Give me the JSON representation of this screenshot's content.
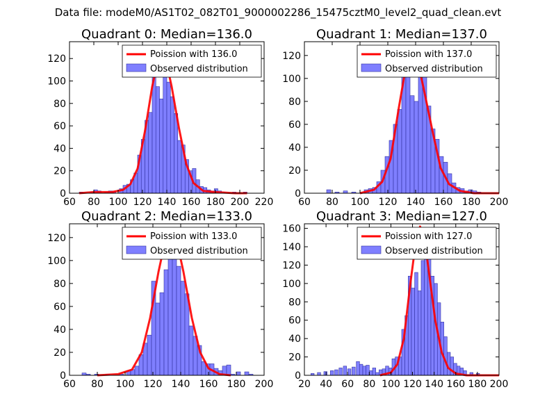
{
  "figure": {
    "suptitle": "Data file: modeM0/AS1T02_082T01_9000002286_15475cztM0_level2_quad_clean.evt"
  },
  "colors": {
    "hist_fill": "#7f7fff",
    "hist_edge": "#3030a0",
    "poisson_line": "#ff0000",
    "axes": "#000000"
  },
  "chart_data": [
    {
      "type": "bar",
      "title": "Quadrant 0: Median=136.0",
      "median": 136.0,
      "xlim": [
        60,
        220
      ],
      "ylim": [
        0,
        135
      ],
      "xticks": [
        60,
        80,
        100,
        120,
        140,
        160,
        180,
        200,
        220
      ],
      "yticks": [
        0,
        20,
        40,
        60,
        80,
        100,
        120
      ],
      "bin_width": 3,
      "legend": {
        "position": "upper-right",
        "entries": [
          "Poission with 136.0",
          "Observed distribution"
        ]
      },
      "hist": [
        [
          68,
          1
        ],
        [
          77,
          1
        ],
        [
          80,
          3
        ],
        [
          83,
          2
        ],
        [
          89,
          1
        ],
        [
          92,
          2
        ],
        [
          95,
          2
        ],
        [
          101,
          4
        ],
        [
          104,
          7
        ],
        [
          107,
          8
        ],
        [
          110,
          12
        ],
        [
          113,
          18
        ],
        [
          116,
          34
        ],
        [
          119,
          48
        ],
        [
          122,
          65
        ],
        [
          125,
          72
        ],
        [
          128,
          110
        ],
        [
          131,
          95
        ],
        [
          134,
          84
        ],
        [
          137,
          110
        ],
        [
          140,
          99
        ],
        [
          143,
          86
        ],
        [
          146,
          71
        ],
        [
          149,
          47
        ],
        [
          152,
          43
        ],
        [
          155,
          30
        ],
        [
          158,
          20
        ],
        [
          161,
          22
        ],
        [
          164,
          12
        ],
        [
          167,
          6
        ],
        [
          170,
          5
        ],
        [
          173,
          3
        ],
        [
          176,
          2
        ],
        [
          179,
          4
        ],
        [
          182,
          2
        ],
        [
          185,
          1
        ],
        [
          194,
          1
        ],
        [
          203,
          1
        ]
      ],
      "poisson": [
        [
          68,
          0
        ],
        [
          80,
          1
        ],
        [
          95,
          1
        ],
        [
          104,
          3
        ],
        [
          110,
          8
        ],
        [
          116,
          22
        ],
        [
          122,
          55
        ],
        [
          128,
          95
        ],
        [
          132,
          115
        ],
        [
          136,
          124
        ],
        [
          140,
          115
        ],
        [
          144,
          95
        ],
        [
          150,
          58
        ],
        [
          156,
          26
        ],
        [
          162,
          9
        ],
        [
          170,
          2
        ],
        [
          180,
          1
        ],
        [
          196,
          0
        ],
        [
          206,
          0
        ]
      ]
    },
    {
      "type": "bar",
      "title": "Quadrant 1: Median=137.0",
      "median": 137.0,
      "xlim": [
        60,
        200
      ],
      "ylim": [
        0,
        132
      ],
      "xticks": [
        60,
        80,
        100,
        120,
        140,
        160,
        180,
        200
      ],
      "yticks": [
        0,
        20,
        40,
        60,
        80,
        100,
        120
      ],
      "bin_width": 3,
      "legend": {
        "position": "upper-right",
        "entries": [
          "Poission with 137.0",
          "Observed distribution"
        ]
      },
      "hist": [
        [
          76,
          3
        ],
        [
          82,
          1
        ],
        [
          88,
          2
        ],
        [
          94,
          1
        ],
        [
          103,
          3
        ],
        [
          106,
          4
        ],
        [
          109,
          5
        ],
        [
          112,
          10
        ],
        [
          115,
          20
        ],
        [
          118,
          32
        ],
        [
          121,
          46
        ],
        [
          124,
          60
        ],
        [
          127,
          73
        ],
        [
          130,
          105
        ],
        [
          133,
          123
        ],
        [
          136,
          85
        ],
        [
          139,
          80
        ],
        [
          142,
          118
        ],
        [
          145,
          105
        ],
        [
          148,
          76
        ],
        [
          151,
          56
        ],
        [
          154,
          47
        ],
        [
          157,
          32
        ],
        [
          160,
          27
        ],
        [
          163,
          17
        ],
        [
          166,
          9
        ],
        [
          169,
          5
        ],
        [
          172,
          4
        ],
        [
          175,
          2
        ],
        [
          178,
          3
        ],
        [
          181,
          2
        ],
        [
          184,
          1
        ]
      ],
      "poisson": [
        [
          100,
          0
        ],
        [
          110,
          3
        ],
        [
          116,
          10
        ],
        [
          122,
          30
        ],
        [
          128,
          75
        ],
        [
          133,
          110
        ],
        [
          137,
          128
        ],
        [
          141,
          118
        ],
        [
          146,
          90
        ],
        [
          152,
          55
        ],
        [
          158,
          22
        ],
        [
          164,
          8
        ],
        [
          172,
          2
        ],
        [
          182,
          0
        ],
        [
          200,
          0
        ]
      ]
    },
    {
      "type": "bar",
      "title": "Quadrant 2: Median=133.0",
      "median": 133.0,
      "xlim": [
        60,
        200
      ],
      "ylim": [
        0,
        132
      ],
      "xticks": [
        60,
        80,
        100,
        120,
        140,
        160,
        180,
        200
      ],
      "yticks": [
        0,
        20,
        40,
        60,
        80,
        100,
        120
      ],
      "bin_width": 3,
      "legend": {
        "position": "upper-right",
        "entries": [
          "Poission with 133.0",
          "Observed distribution"
        ]
      },
      "hist": [
        [
          69,
          2
        ],
        [
          72,
          1
        ],
        [
          78,
          1
        ],
        [
          86,
          1
        ],
        [
          96,
          1
        ],
        [
          101,
          4
        ],
        [
          104,
          5
        ],
        [
          107,
          8
        ],
        [
          110,
          18
        ],
        [
          113,
          28
        ],
        [
          116,
          35
        ],
        [
          119,
          82
        ],
        [
          122,
          63
        ],
        [
          125,
          72
        ],
        [
          128,
          92
        ],
        [
          131,
          102
        ],
        [
          134,
          128
        ],
        [
          137,
          95
        ],
        [
          140,
          82
        ],
        [
          143,
          71
        ],
        [
          146,
          43
        ],
        [
          149,
          34
        ],
        [
          152,
          26
        ],
        [
          155,
          12
        ],
        [
          158,
          10
        ],
        [
          161,
          10
        ],
        [
          164,
          6
        ],
        [
          167,
          4
        ],
        [
          170,
          8
        ],
        [
          173,
          9
        ],
        [
          176,
          1
        ],
        [
          180,
          3
        ],
        [
          186,
          3
        ],
        [
          189,
          1
        ]
      ],
      "poisson": [
        [
          80,
          0
        ],
        [
          95,
          1
        ],
        [
          105,
          5
        ],
        [
          112,
          20
        ],
        [
          118,
          50
        ],
        [
          124,
          90
        ],
        [
          129,
          118
        ],
        [
          133,
          127
        ],
        [
          137,
          118
        ],
        [
          142,
          90
        ],
        [
          148,
          50
        ],
        [
          154,
          20
        ],
        [
          160,
          6
        ],
        [
          168,
          1
        ],
        [
          176,
          0
        ]
      ]
    },
    {
      "type": "bar",
      "title": "Quadrant 3: Median=127.0",
      "median": 127.0,
      "xlim": [
        20,
        200
      ],
      "ylim": [
        0,
        165
      ],
      "xticks": [
        20,
        40,
        60,
        80,
        100,
        120,
        140,
        160,
        180,
        200
      ],
      "yticks": [
        0,
        20,
        40,
        60,
        80,
        100,
        120,
        140,
        160
      ],
      "bin_width": 3,
      "legend": {
        "position": "upper-right",
        "entries": [
          "Poission with 127.0",
          "Observed distribution"
        ]
      },
      "hist": [
        [
          26,
          2
        ],
        [
          32,
          3
        ],
        [
          38,
          4
        ],
        [
          44,
          5
        ],
        [
          48,
          6
        ],
        [
          52,
          8
        ],
        [
          56,
          10
        ],
        [
          60,
          7
        ],
        [
          64,
          9
        ],
        [
          68,
          15
        ],
        [
          71,
          12
        ],
        [
          74,
          10
        ],
        [
          77,
          11
        ],
        [
          80,
          5
        ],
        [
          83,
          8
        ],
        [
          86,
          3
        ],
        [
          89,
          6
        ],
        [
          92,
          7
        ],
        [
          95,
          10
        ],
        [
          98,
          8
        ],
        [
          101,
          18
        ],
        [
          104,
          20
        ],
        [
          107,
          20
        ],
        [
          110,
          50
        ],
        [
          113,
          65
        ],
        [
          116,
          108
        ],
        [
          119,
          95
        ],
        [
          122,
          112
        ],
        [
          125,
          92
        ],
        [
          128,
          125
        ],
        [
          131,
          160
        ],
        [
          134,
          155
        ],
        [
          137,
          108
        ],
        [
          140,
          100
        ],
        [
          143,
          79
        ],
        [
          146,
          58
        ],
        [
          149,
          42
        ],
        [
          152,
          25
        ],
        [
          155,
          20
        ],
        [
          158,
          13
        ],
        [
          161,
          10
        ],
        [
          164,
          8
        ],
        [
          167,
          5
        ],
        [
          173,
          3
        ],
        [
          179,
          2
        ]
      ],
      "poisson": [
        [
          90,
          0
        ],
        [
          100,
          3
        ],
        [
          106,
          12
        ],
        [
          112,
          40
        ],
        [
          118,
          100
        ],
        [
          123,
          145
        ],
        [
          127,
          162
        ],
        [
          131,
          150
        ],
        [
          136,
          105
        ],
        [
          141,
          60
        ],
        [
          147,
          25
        ],
        [
          153,
          8
        ],
        [
          160,
          2
        ],
        [
          170,
          0
        ],
        [
          200,
          0
        ]
      ]
    }
  ]
}
